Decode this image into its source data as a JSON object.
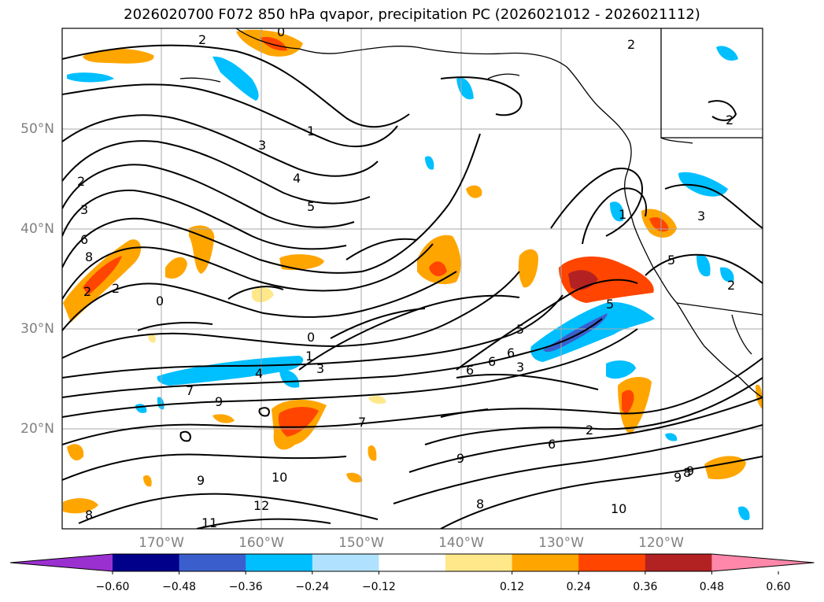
{
  "title": "2026020700 F072 850 hPa qvapor, precipitation PC (2026021012 - 2026021112)",
  "lat_labels": [
    {
      "value": 50,
      "text": "50°N"
    },
    {
      "value": 40,
      "text": "40°N"
    },
    {
      "value": 30,
      "text": "30°N"
    },
    {
      "value": 20,
      "text": "20°N"
    }
  ],
  "lon_labels": [
    {
      "value": -170,
      "text": "170°W"
    },
    {
      "value": -160,
      "text": "160°W"
    },
    {
      "value": -150,
      "text": "150°W"
    },
    {
      "value": -140,
      "text": "140°W"
    },
    {
      "value": -130,
      "text": "130°W"
    },
    {
      "value": -120,
      "text": "120°W"
    }
  ],
  "colorbar": {
    "colors": [
      "#9b30d0",
      "#00008b",
      "#3a5fcd",
      "#00bfff",
      "#b0e2ff",
      "#ffffff",
      "#ffe88a",
      "#ffa500",
      "#ff4500",
      "#b22222",
      "#ff88aa"
    ],
    "ticks": [
      "−0.60",
      "−0.48",
      "−0.36",
      "−0.24",
      "−0.12",
      "0.12",
      "0.24",
      "0.36",
      "0.48",
      "0.60"
    ]
  },
  "contour_labels": [
    "2",
    "0",
    "2",
    "1",
    "3",
    "4",
    "5",
    "2",
    "3",
    "6",
    "8",
    "2",
    "0",
    "0",
    "1",
    "3",
    "4",
    "7",
    "9",
    "5",
    "6",
    "6",
    "6",
    "3",
    "2",
    "6",
    "9",
    "9",
    "8",
    "9",
    "10",
    "12",
    "11",
    "8",
    "9",
    "8",
    "10",
    "2",
    "2",
    "1",
    "5",
    "3",
    "5",
    "2",
    "7"
  ]
}
